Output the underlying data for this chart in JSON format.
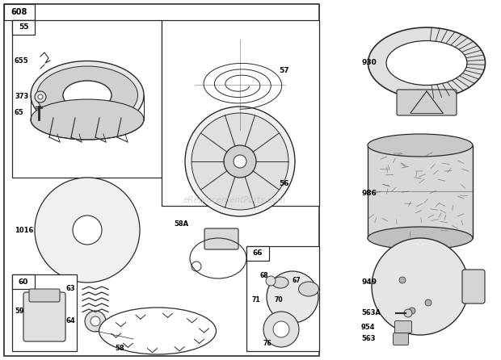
{
  "bg_color": "#ffffff",
  "fig_width": 6.2,
  "fig_height": 4.46,
  "watermark": "eReplacementParts.com",
  "gray": "#2a2a2a",
  "lightgray": "#c8c8c8",
  "midgray": "#888888"
}
